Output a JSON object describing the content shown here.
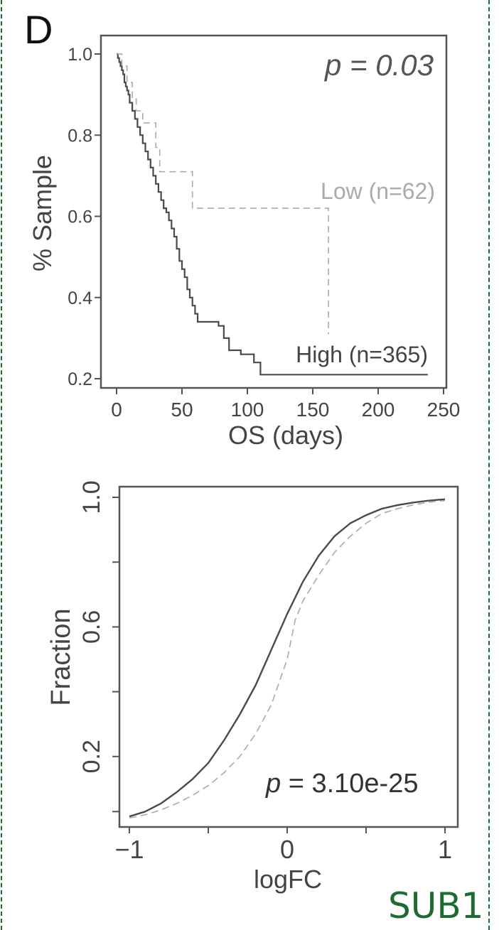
{
  "figure": {
    "panel_letter": "D",
    "gene_label": "SUB1",
    "frame_color": "#1e6b32"
  },
  "chart_data": [
    {
      "type": "line",
      "name": "survival",
      "xlabel": "OS (days)",
      "ylabel": "% Sample",
      "xlim": [
        0,
        250
      ],
      "ylim": [
        0.2,
        1.0
      ],
      "xticks": [
        0,
        50,
        100,
        150,
        200,
        250
      ],
      "xtick_labels": [
        "0",
        "50",
        "100",
        "150",
        "200",
        "250"
      ],
      "yticks": [
        0.2,
        0.4,
        0.6,
        0.8,
        1.0
      ],
      "ytick_labels": [
        "0.2",
        "0.4",
        "0.6",
        "0.8",
        "1.0"
      ],
      "annotation": "p = 0.03",
      "grid": false,
      "series": [
        {
          "name": "High (n=365)",
          "color": "#4a4a4a",
          "style": "solid",
          "step": true,
          "points": [
            [
              0,
              1.0
            ],
            [
              1,
              0.99
            ],
            [
              2,
              0.98
            ],
            [
              3,
              0.97
            ],
            [
              4,
              0.96
            ],
            [
              5,
              0.95
            ],
            [
              6,
              0.93
            ],
            [
              7,
              0.92
            ],
            [
              8,
              0.91
            ],
            [
              9,
              0.9
            ],
            [
              10,
              0.88
            ],
            [
              12,
              0.86
            ],
            [
              14,
              0.84
            ],
            [
              16,
              0.82
            ],
            [
              18,
              0.8
            ],
            [
              20,
              0.78
            ],
            [
              22,
              0.76
            ],
            [
              24,
              0.74
            ],
            [
              26,
              0.72
            ],
            [
              28,
              0.7
            ],
            [
              30,
              0.68
            ],
            [
              32,
              0.66
            ],
            [
              34,
              0.64
            ],
            [
              36,
              0.62
            ],
            [
              38,
              0.61
            ],
            [
              40,
              0.59
            ],
            [
              42,
              0.57
            ],
            [
              44,
              0.55
            ],
            [
              46,
              0.52
            ],
            [
              48,
              0.49
            ],
            [
              50,
              0.47
            ],
            [
              52,
              0.45
            ],
            [
              54,
              0.42
            ],
            [
              56,
              0.4
            ],
            [
              58,
              0.38
            ],
            [
              60,
              0.36
            ],
            [
              62,
              0.34
            ],
            [
              78,
              0.33
            ],
            [
              82,
              0.3
            ],
            [
              86,
              0.27
            ],
            [
              95,
              0.26
            ],
            [
              105,
              0.24
            ],
            [
              110,
              0.21
            ],
            [
              238,
              0.21
            ]
          ]
        },
        {
          "name": "Low (n=62)",
          "color": "#aaaaaa",
          "style": "dashed",
          "step": true,
          "points": [
            [
              0,
              1.0
            ],
            [
              4,
              0.97
            ],
            [
              8,
              0.93
            ],
            [
              12,
              0.89
            ],
            [
              15,
              0.86
            ],
            [
              20,
              0.83
            ],
            [
              30,
              0.77
            ],
            [
              33,
              0.71
            ],
            [
              58,
              0.62
            ],
            [
              162,
              0.31
            ]
          ]
        }
      ]
    },
    {
      "type": "line",
      "name": "cdf",
      "xlabel": "logFC",
      "ylabel": "Fraction",
      "xlim": [
        -1,
        1
      ],
      "ylim": [
        0,
        1
      ],
      "xticks": [
        -1,
        0,
        1
      ],
      "xtick_labels": [
        "−1",
        "0",
        "1"
      ],
      "yticks": [
        0.2,
        0.6,
        1.0
      ],
      "ytick_labels": [
        "0.2",
        "0.6",
        "1.0"
      ],
      "annotation_italic": "p",
      "annotation_rest": " = 3.10e-25",
      "grid": false,
      "series": [
        {
          "color": "#4a4a4a",
          "style": "solid",
          "points": [
            [
              -1.0,
              0.015
            ],
            [
              -0.9,
              0.03
            ],
            [
              -0.8,
              0.055
            ],
            [
              -0.7,
              0.09
            ],
            [
              -0.6,
              0.13
            ],
            [
              -0.5,
              0.18
            ],
            [
              -0.4,
              0.25
            ],
            [
              -0.3,
              0.33
            ],
            [
              -0.2,
              0.42
            ],
            [
              -0.1,
              0.53
            ],
            [
              0.0,
              0.64
            ],
            [
              0.1,
              0.74
            ],
            [
              0.2,
              0.82
            ],
            [
              0.3,
              0.88
            ],
            [
              0.4,
              0.92
            ],
            [
              0.5,
              0.945
            ],
            [
              0.6,
              0.965
            ],
            [
              0.7,
              0.976
            ],
            [
              0.8,
              0.984
            ],
            [
              0.9,
              0.99
            ],
            [
              1.0,
              0.994
            ]
          ]
        },
        {
          "color": "#aaaaaa",
          "style": "dashed",
          "points": [
            [
              -1.0,
              0.01
            ],
            [
              -0.9,
              0.02
            ],
            [
              -0.8,
              0.035
            ],
            [
              -0.7,
              0.055
            ],
            [
              -0.6,
              0.08
            ],
            [
              -0.5,
              0.11
            ],
            [
              -0.4,
              0.15
            ],
            [
              -0.3,
              0.2
            ],
            [
              -0.2,
              0.27
            ],
            [
              -0.1,
              0.36
            ],
            [
              0.0,
              0.5
            ],
            [
              0.05,
              0.62
            ],
            [
              0.1,
              0.68
            ],
            [
              0.2,
              0.76
            ],
            [
              0.3,
              0.83
            ],
            [
              0.4,
              0.88
            ],
            [
              0.5,
              0.92
            ],
            [
              0.6,
              0.95
            ],
            [
              0.7,
              0.965
            ],
            [
              0.8,
              0.977
            ],
            [
              0.9,
              0.985
            ],
            [
              1.0,
              0.99
            ]
          ]
        }
      ]
    }
  ]
}
